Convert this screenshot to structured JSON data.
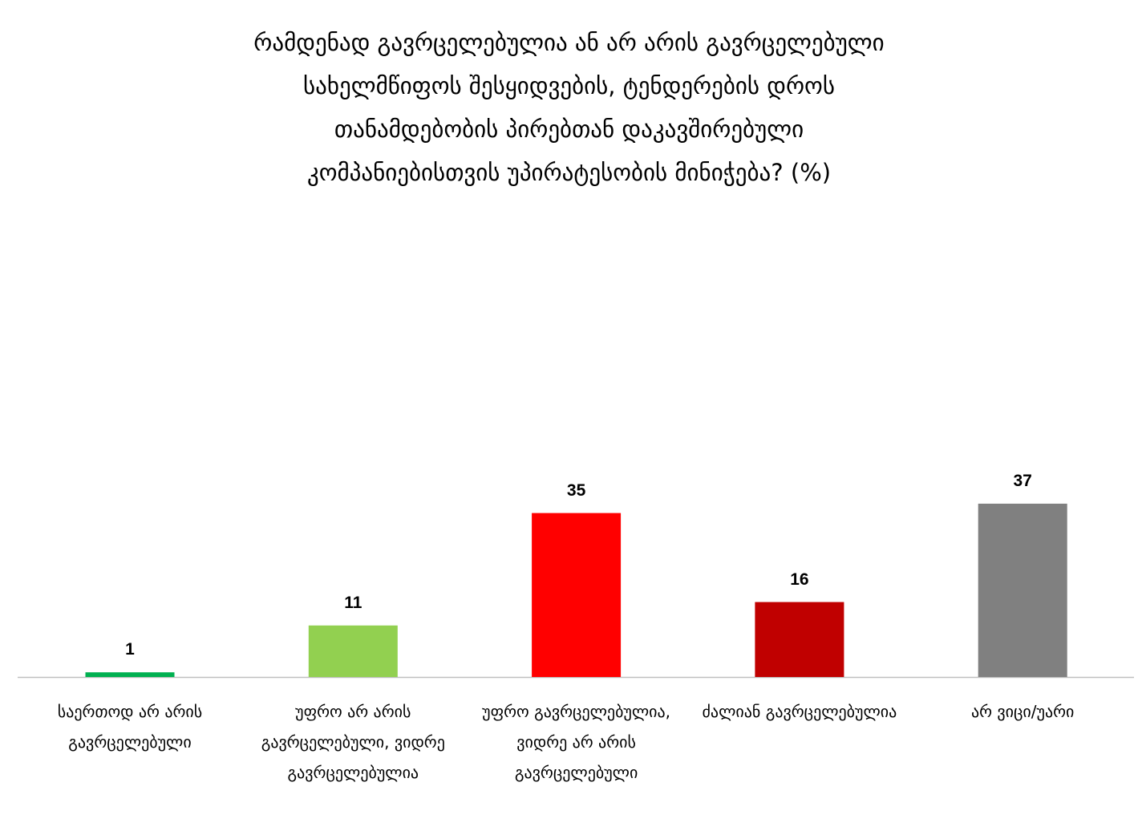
{
  "chart_data": {
    "type": "bar",
    "title": [
      "რამდენად გავრცელებულია ან არ არის გავრცელებული",
      "სახელმწიფოს შესყიდვების, ტენდერების დროს",
      "თანამდებობის პირებთან დაკავშირებული",
      "კომპანიებისთვის უპირატესობის მინიჭება? (%)"
    ],
    "categories": [
      "საერთოდ არ არის გავრცელებული",
      "უფრო არ არის გავრცელებული, ვიდრე გავრცელებულია",
      "უფრო გავრცელებულია, ვიდრე არ არის გავრცელებული",
      "ძალიან გავრცელებულია",
      "არ ვიცი/უარი"
    ],
    "values": [
      1,
      11,
      35,
      16,
      37
    ],
    "colors": [
      "#00b050",
      "#92d050",
      "#ff0000",
      "#c00000",
      "#808080"
    ]
  }
}
